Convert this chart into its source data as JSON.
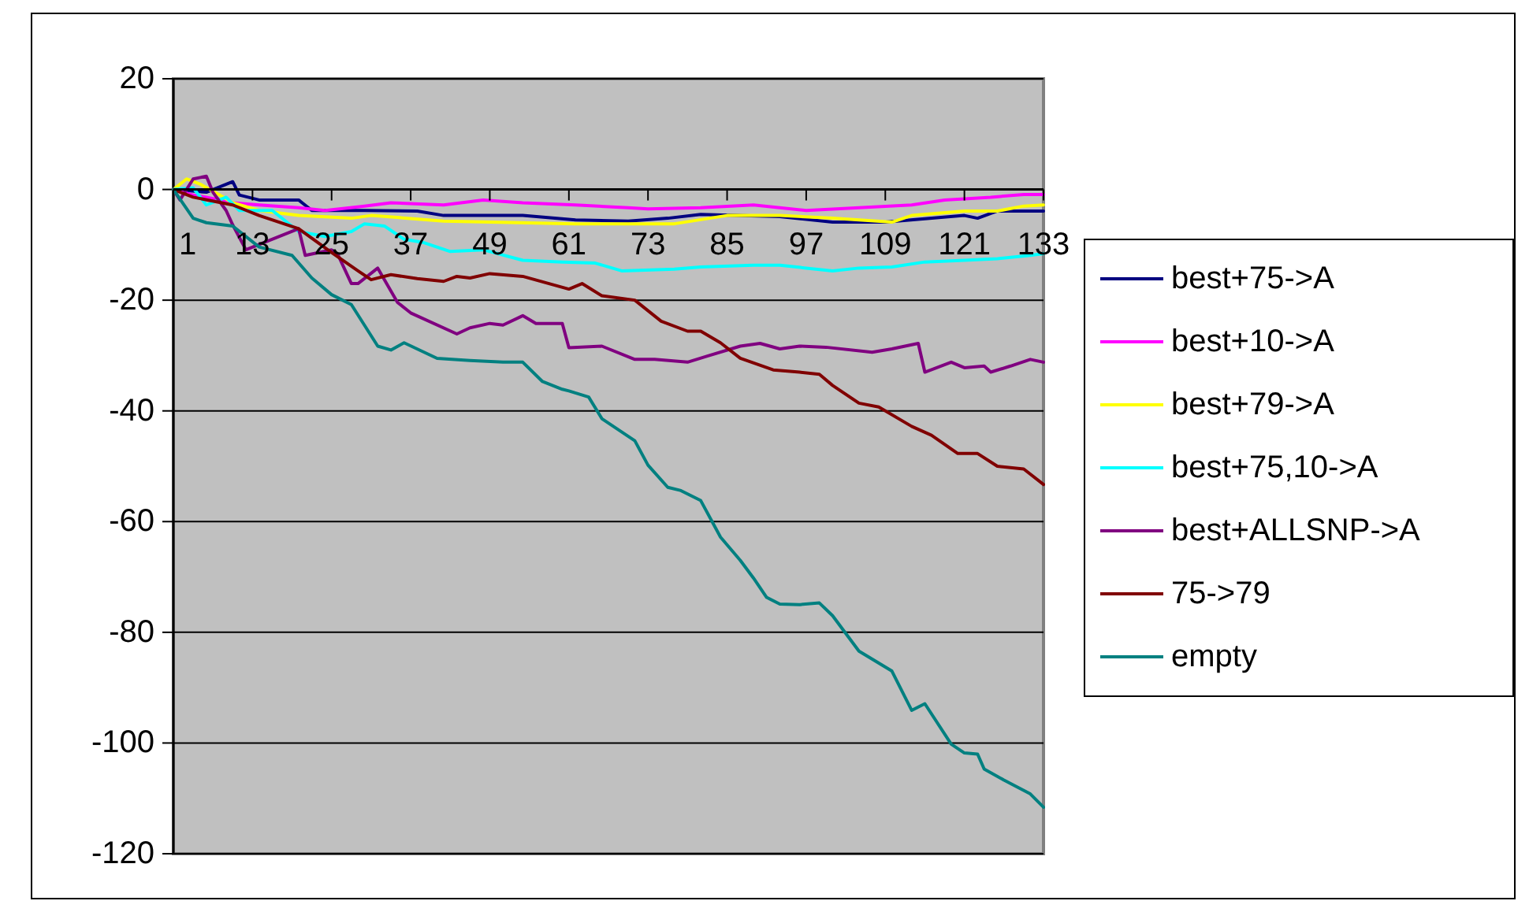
{
  "chart_data": {
    "type": "line",
    "xlim": [
      1,
      133
    ],
    "xticks": [
      1,
      13,
      25,
      37,
      49,
      61,
      73,
      85,
      97,
      109,
      121,
      133
    ],
    "ylim": [
      -120,
      20
    ],
    "yticks": [
      -120,
      -100,
      -80,
      -60,
      -40,
      -20,
      0,
      20
    ],
    "grid": "y",
    "legend": "right",
    "marker": "none",
    "line_style": "solid",
    "series": [
      {
        "name": "best+75->A",
        "color": "#000080",
        "x": [
          1,
          6,
          10,
          11,
          14,
          18,
          20,
          22,
          30,
          38,
          42,
          54,
          62,
          70,
          76,
          81,
          93,
          101,
          109,
          121,
          123,
          126,
          133
        ],
        "values": [
          0,
          -0.5,
          1.4,
          -1,
          -1.9,
          -1.9,
          -1.9,
          -3.8,
          -3.8,
          -3.9,
          -4.7,
          -4.7,
          -5.5,
          -5.7,
          -5.2,
          -4.5,
          -4.9,
          -5.9,
          -5.9,
          -4.7,
          -5.2,
          -3.9,
          -3.9
        ]
      },
      {
        "name": "best+10->A",
        "color": "#ff00ff",
        "x": [
          1,
          4,
          6,
          10,
          14,
          20,
          24,
          30,
          34,
          42,
          48,
          54,
          62,
          70,
          73,
          81,
          89,
          97,
          105,
          113,
          118,
          125,
          130,
          133
        ],
        "values": [
          0,
          -1,
          -1.4,
          -2.4,
          -2.8,
          -3.3,
          -3.8,
          -3,
          -2.4,
          -2.8,
          -1.9,
          -2.4,
          -2.8,
          -3.3,
          -3.5,
          -3.3,
          -2.8,
          -3.8,
          -3.3,
          -2.8,
          -1.9,
          -1.4,
          -0.9,
          -0.9
        ]
      },
      {
        "name": "best+79->A",
        "color": "#ffff00",
        "x": [
          1,
          3,
          5,
          8,
          10,
          14,
          20,
          28,
          31,
          42,
          62,
          70,
          77,
          85,
          93,
          101,
          110,
          113,
          121,
          126,
          130,
          133
        ],
        "values": [
          0,
          1.9,
          1,
          -1,
          -2.4,
          -3.8,
          -4.7,
          -5.2,
          -4.7,
          -5.7,
          -6.2,
          -6.2,
          -6.2,
          -4.7,
          -4.7,
          -5.2,
          -5.9,
          -4.7,
          -3.9,
          -3.9,
          -3,
          -2.8
        ]
      },
      {
        "name": "best+75,10->A",
        "color": "#00ffff",
        "x": [
          1,
          4,
          6,
          9,
          11,
          16,
          20,
          24,
          28,
          30,
          33,
          36,
          39,
          43,
          48,
          54,
          60,
          65,
          69,
          77,
          81,
          89,
          93,
          101,
          105,
          110,
          115,
          121,
          126,
          131,
          133
        ],
        "values": [
          0,
          0.3,
          -2.8,
          -1.4,
          -3.8,
          -3.8,
          -7.6,
          -8.5,
          -7.6,
          -6.2,
          -6.6,
          -9,
          -9.6,
          -11.2,
          -10.9,
          -12.8,
          -13.1,
          -13.3,
          -14.7,
          -14.4,
          -14,
          -13.7,
          -13.7,
          -14.7,
          -14.2,
          -14,
          -13.1,
          -12.8,
          -12.5,
          -11.9,
          -11.6
        ]
      },
      {
        "name": "best+ALLSNP->A",
        "color": "#800080",
        "x": [
          1,
          2,
          4,
          6,
          7,
          9,
          10,
          12,
          20,
          21,
          23,
          25,
          26,
          28,
          29,
          32,
          35,
          37,
          44,
          46,
          49,
          51,
          54,
          56,
          60,
          61,
          66,
          71,
          74,
          79,
          82,
          87,
          90,
          93,
          96,
          100,
          107,
          110,
          114,
          115,
          119,
          121,
          124,
          125,
          128,
          131,
          133
        ],
        "values": [
          0,
          -1.9,
          1.9,
          2.4,
          -0.5,
          -3.8,
          -6.4,
          -10.9,
          -7.1,
          -11.9,
          -11.4,
          -10.9,
          -11.9,
          -17,
          -17,
          -14.2,
          -20.4,
          -22.3,
          -26.1,
          -25,
          -24.2,
          -24.5,
          -22.8,
          -24.2,
          -24.2,
          -28.6,
          -28.3,
          -30.7,
          -30.7,
          -31.2,
          -30.1,
          -28.3,
          -27.8,
          -28.8,
          -28.3,
          -28.5,
          -29.4,
          -28.8,
          -27.8,
          -33,
          -31.2,
          -32.2,
          -31.9,
          -33,
          -31.9,
          -30.7,
          -31.2
        ]
      },
      {
        "name": "75->79",
        "color": "#800000",
        "x": [
          1,
          4,
          10,
          14,
          20,
          25,
          29,
          31,
          34,
          38,
          42,
          44,
          46,
          49,
          54,
          61,
          63,
          66,
          71,
          75,
          79,
          81,
          84,
          87,
          92,
          96,
          99,
          101,
          105,
          108,
          113,
          116,
          120,
          123,
          126,
          130,
          133
        ],
        "values": [
          0,
          -1.4,
          -2.8,
          -4.7,
          -7.1,
          -11.4,
          -14.7,
          -16.3,
          -15.4,
          -16.1,
          -16.6,
          -15.7,
          -16,
          -15.2,
          -15.7,
          -18,
          -17,
          -19.2,
          -20,
          -23.8,
          -25.6,
          -25.6,
          -27.7,
          -30.5,
          -32.6,
          -33,
          -33.4,
          -35.4,
          -38.6,
          -39.3,
          -42.8,
          -44.4,
          -47.7,
          -47.7,
          -50,
          -50.5,
          -53.3
        ]
      },
      {
        "name": "empty",
        "color": "#008080",
        "x": [
          1,
          4,
          6,
          10,
          14,
          19,
          22,
          25,
          28,
          32,
          34,
          36,
          41,
          46,
          51,
          54,
          57,
          60,
          61,
          64,
          66,
          71,
          73,
          76,
          78,
          81,
          84,
          87,
          89,
          91,
          93,
          96,
          99,
          101,
          105,
          110,
          113,
          115,
          119,
          121,
          123,
          124,
          127,
          131,
          133
        ],
        "values": [
          0,
          -5.2,
          -6,
          -6.6,
          -10.4,
          -11.9,
          -16,
          -19,
          -20.8,
          -28.3,
          -29,
          -27.7,
          -30.5,
          -30.9,
          -31.2,
          -31.2,
          -34.7,
          -36.1,
          -36.4,
          -37.5,
          -41.4,
          -45.4,
          -49.8,
          -53.8,
          -54.4,
          -56.2,
          -62.8,
          -67,
          -70.2,
          -73.7,
          -74.9,
          -75,
          -74.7,
          -77,
          -83.4,
          -87,
          -94.1,
          -92.9,
          -100.2,
          -101.8,
          -102,
          -104.7,
          -106.7,
          -109.2,
          -111.6
        ]
      }
    ]
  }
}
